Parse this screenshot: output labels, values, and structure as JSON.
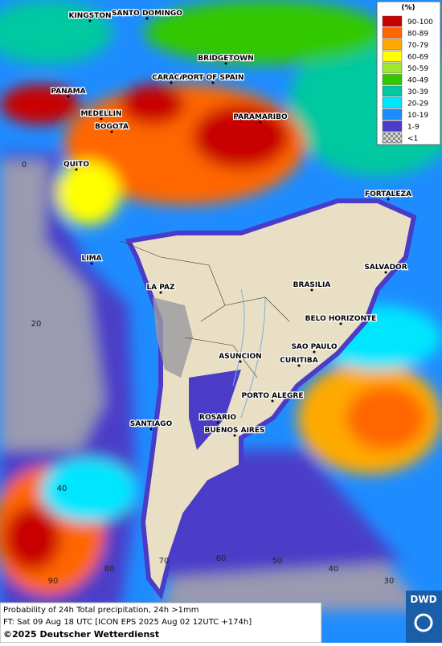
{
  "map": {
    "cities": [
      "KINGSTON",
      "SANTO DOMINGO",
      "BRIDGETOWN",
      "CARACAS",
      "PORT OF SPAIN",
      "PANAMA",
      "MEDELLIN",
      "BOGOTA",
      "PARAMARIBO",
      "QUITO",
      "FORTALEZA",
      "LIMA",
      "SALVADOR",
      "BRASILIA",
      "LA PAZ",
      "BELO HORIZONTE",
      "SAO PAULO",
      "ASUNCION",
      "CURITIBA",
      "PORTO ALEGRE",
      "ROSARIO",
      "BUENOS AIRES",
      "SANTIAGO"
    ],
    "grid_labels": [
      "0",
      "20",
      "40",
      "90",
      "80",
      "70",
      "60",
      "50",
      "40",
      "30"
    ],
    "legend": {
      "title": "(%)",
      "entries": [
        {
          "label": "90-100",
          "color": "#c80000"
        },
        {
          "label": "80-89",
          "color": "#ff6600"
        },
        {
          "label": "70-79",
          "color": "#ffaa00"
        },
        {
          "label": "60-69",
          "color": "#ffff00"
        },
        {
          "label": "50-59",
          "color": "#a0e632"
        },
        {
          "label": "40-49",
          "color": "#32c800"
        },
        {
          "label": "30-39",
          "color": "#00c8a0"
        },
        {
          "label": "20-29",
          "color": "#00e6ff"
        },
        {
          "label": "10-19",
          "color": "#1e8cff"
        },
        {
          "label": "1-9",
          "color": "#4b3cc8"
        },
        {
          "label": "<1",
          "color": "#a0a0a0"
        }
      ]
    }
  },
  "footer": {
    "lines": [
      "Probability of 24h Total precipitation, 24h >1mm",
      "FT: Sat 09 Aug 18 UTC [ICON EPS 2025 Aug 02 12UTC +174h]"
    ],
    "copyright": "©2025 Deutscher Wetterdienst"
  },
  "logo": "DWD"
}
